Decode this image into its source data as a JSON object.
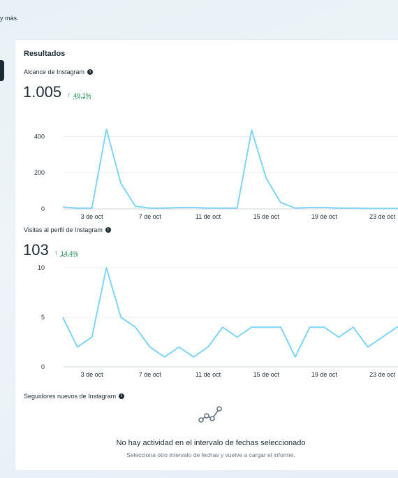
{
  "header": {
    "text": "y más."
  },
  "card": {
    "title": "Resultados"
  },
  "metrics": [
    {
      "label": "Alcance de Instagram",
      "value": "1.005",
      "change": "49,1%"
    },
    {
      "label": "Visitas al perfil de Instagram",
      "value": "103",
      "change": "14,4%"
    },
    {
      "label": "Seguidores nuevos de Instagram"
    }
  ],
  "chart_data": [
    {
      "type": "line",
      "x": [
        1,
        2,
        3,
        4,
        5,
        6,
        7,
        8,
        9,
        10,
        11,
        12,
        13,
        14,
        15,
        16,
        17,
        18,
        19,
        20,
        21,
        22,
        23,
        24,
        25
      ],
      "x_tick_labels": [
        "3 de oct",
        "7 de oct",
        "11 de oct",
        "15 de oct",
        "19 de oct",
        "23 de oct"
      ],
      "y_ticks": [
        0,
        200,
        400
      ],
      "ylim": [
        0,
        440
      ],
      "series": [
        {
          "values": [
            10,
            5,
            5,
            440,
            140,
            15,
            5,
            5,
            8,
            8,
            5,
            5,
            5,
            435,
            170,
            35,
            5,
            8,
            8,
            5,
            5,
            3,
            3,
            3,
            3
          ]
        }
      ],
      "color": "#7fd4f7"
    },
    {
      "type": "line",
      "x": [
        1,
        2,
        3,
        4,
        5,
        6,
        7,
        8,
        9,
        10,
        11,
        12,
        13,
        14,
        15,
        16,
        17,
        18,
        19,
        20,
        21,
        22,
        23,
        24,
        25
      ],
      "x_tick_labels": [
        "3 de oct",
        "7 de oct",
        "11 de oct",
        "15 de oct",
        "19 de oct",
        "23 de oct"
      ],
      "y_ticks": [
        0,
        5,
        10
      ],
      "ylim": [
        0,
        10
      ],
      "series": [
        {
          "values": [
            5,
            2,
            3,
            10,
            5,
            4,
            2,
            1,
            2,
            1,
            2,
            4,
            3,
            4,
            4,
            4,
            1,
            4,
            4,
            3,
            4,
            2,
            3,
            4,
            4
          ]
        }
      ],
      "color": "#7fd4f7"
    }
  ],
  "empty_state": {
    "icon": "line-chart-icon",
    "title": "No hay actividad en el intervalo de fechas seleccionado",
    "subtitle": "Selecciona otro intervalo de fechas y vuelve a cargar el informe."
  }
}
